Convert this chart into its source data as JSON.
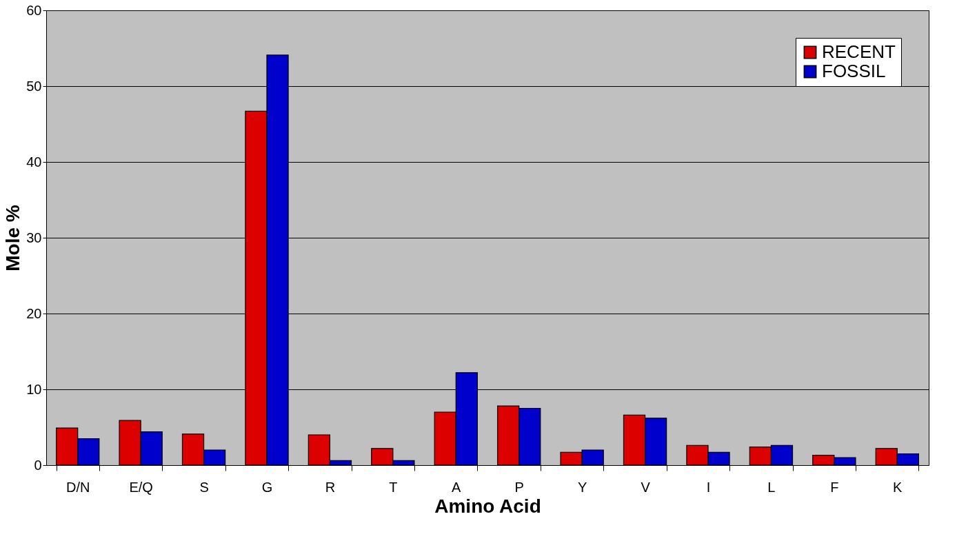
{
  "chart_data": {
    "type": "bar",
    "xlabel": "Amino Acid",
    "ylabel": "Mole %",
    "categories": [
      "D/N",
      "E/Q",
      "S",
      "G",
      "R",
      "T",
      "A",
      "P",
      "Y",
      "V",
      "I",
      "L",
      "F",
      "K"
    ],
    "series": [
      {
        "name": "RECENT",
        "color": "#dd0000",
        "values": [
          4.9,
          5.9,
          4.1,
          46.7,
          4.0,
          2.2,
          7.0,
          7.8,
          1.7,
          6.6,
          2.6,
          2.4,
          1.3,
          2.2
        ]
      },
      {
        "name": "FOSSIL",
        "color": "#0000cc",
        "values": [
          3.5,
          4.4,
          2.0,
          54.1,
          0.6,
          0.6,
          12.2,
          7.5,
          2.0,
          6.2,
          1.7,
          2.6,
          1.0,
          1.5
        ]
      }
    ],
    "ylim": [
      0,
      60
    ],
    "yticks": [
      0,
      10,
      20,
      30,
      40,
      50,
      60
    ],
    "grid": "y",
    "legend": "top right"
  }
}
